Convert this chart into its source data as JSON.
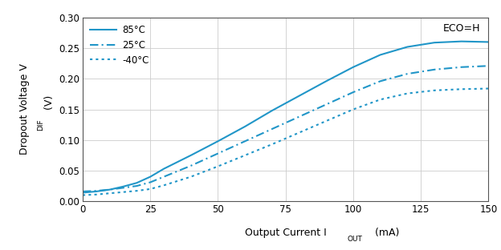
{
  "title_annotation": "ECO=H",
  "xlabel": "Output Current I",
  "xlabel_sub": "OUT",
  "xlabel_unit": " (mA)",
  "ylabel_line1": "Dropout Voltage V",
  "ylabel_sub": "DIF",
  "ylabel_unit": " (V)",
  "xlim": [
    0,
    150
  ],
  "ylim": [
    0,
    0.3
  ],
  "xticks": [
    0,
    25,
    50,
    75,
    100,
    125,
    150
  ],
  "yticks": [
    0,
    0.05,
    0.1,
    0.15,
    0.2,
    0.25,
    0.3
  ],
  "line_color": "#2196C8",
  "series": [
    {
      "label": "85°C",
      "style": "solid",
      "x": [
        0,
        5,
        10,
        15,
        20,
        25,
        30,
        40,
        50,
        60,
        70,
        80,
        90,
        100,
        110,
        120,
        130,
        140,
        150
      ],
      "y": [
        0.014,
        0.016,
        0.019,
        0.024,
        0.03,
        0.04,
        0.053,
        0.075,
        0.098,
        0.122,
        0.148,
        0.172,
        0.196,
        0.219,
        0.239,
        0.252,
        0.259,
        0.261,
        0.26
      ]
    },
    {
      "label": "25°C",
      "style": "dashdot",
      "x": [
        0,
        5,
        10,
        15,
        20,
        25,
        30,
        40,
        50,
        60,
        70,
        80,
        90,
        100,
        110,
        120,
        130,
        140,
        150
      ],
      "y": [
        0.016,
        0.017,
        0.019,
        0.022,
        0.025,
        0.031,
        0.04,
        0.058,
        0.078,
        0.098,
        0.118,
        0.138,
        0.158,
        0.178,
        0.196,
        0.208,
        0.215,
        0.219,
        0.221
      ]
    },
    {
      "label": "-40°C",
      "style": "dotted",
      "x": [
        0,
        5,
        10,
        15,
        20,
        25,
        30,
        40,
        50,
        60,
        70,
        80,
        90,
        100,
        110,
        120,
        130,
        140,
        150
      ],
      "y": [
        0.01,
        0.011,
        0.013,
        0.015,
        0.017,
        0.02,
        0.026,
        0.04,
        0.057,
        0.075,
        0.093,
        0.112,
        0.131,
        0.15,
        0.166,
        0.176,
        0.181,
        0.183,
        0.184
      ]
    }
  ]
}
